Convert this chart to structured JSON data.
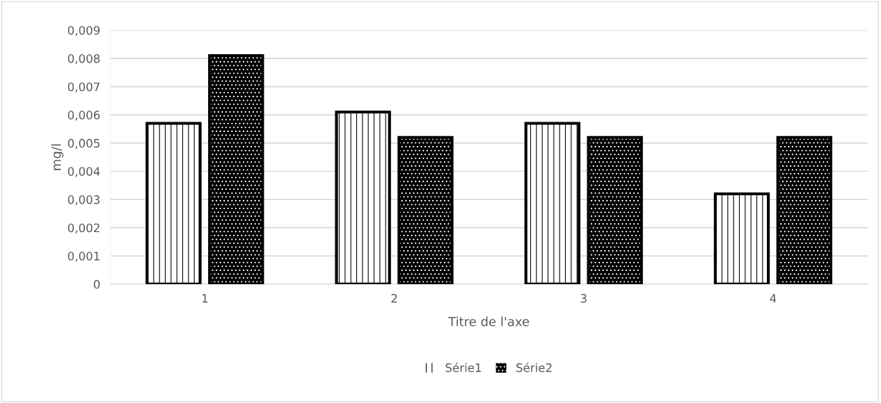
{
  "chart_data": {
    "type": "bar",
    "xlabel": "Titre de l'axe",
    "ylabel": "mg/l",
    "categories": [
      "1",
      "2",
      "3",
      "4"
    ],
    "series": [
      {
        "name": "Série1",
        "color": "#ffffff",
        "values": [
          0.0057,
          0.0061,
          0.0057,
          0.0032
        ]
      },
      {
        "name": "Série2",
        "color": "#000000",
        "values": [
          0.0081,
          0.0052,
          0.0052,
          0.0052
        ]
      }
    ],
    "ylim": [
      0,
      0.009
    ],
    "yticks": [
      0,
      {
        "value": 0.001,
        "label": "0,001"
      },
      {
        "value": 0.002,
        "label": "0,002"
      },
      {
        "value": 0.003,
        "label": "0,003"
      },
      {
        "value": 0.004,
        "label": "0,004"
      },
      {
        "value": 0.005,
        "label": "0,005"
      },
      {
        "value": 0.006,
        "label": "0,006"
      },
      {
        "value": 0.007,
        "label": "0,007"
      },
      {
        "value": 0.008,
        "label": "0,008"
      },
      {
        "value": 0.009,
        "label": "0,009"
      }
    ],
    "grid": "y",
    "legend": "bottom"
  }
}
